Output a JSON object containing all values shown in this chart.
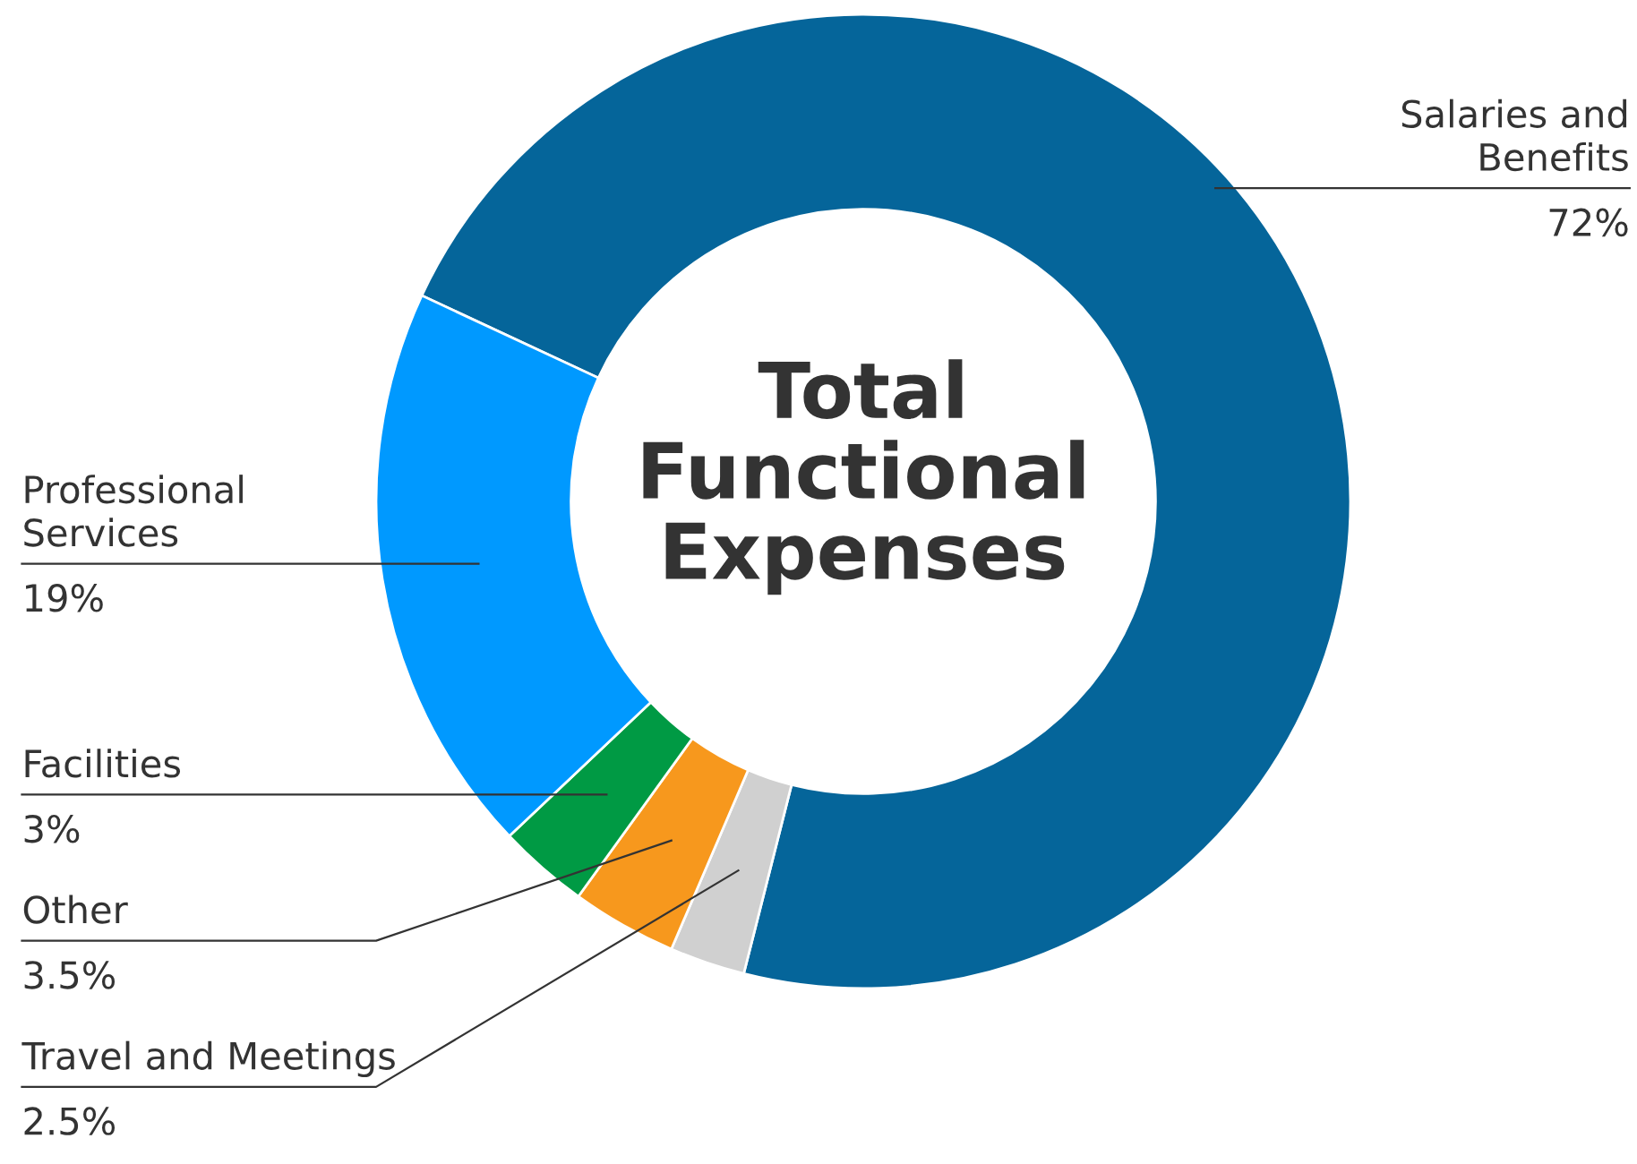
{
  "chart_data": {
    "type": "donut",
    "title": "Total Functional Expenses",
    "categories": [
      "Salaries and\nBenefits",
      "Travel and Meetings",
      "Other",
      "Facilities",
      "Professional\nServices"
    ],
    "values": [
      72,
      2.5,
      3.5,
      3,
      19
    ],
    "colors": [
      "#05659a",
      "#d0d0d0",
      "#f7981d",
      "#009a44",
      "#0099ff"
    ],
    "value_labels": [
      "72%",
      "2.5%",
      "3.5%",
      "3%",
      "19%"
    ],
    "legend": false
  }
}
